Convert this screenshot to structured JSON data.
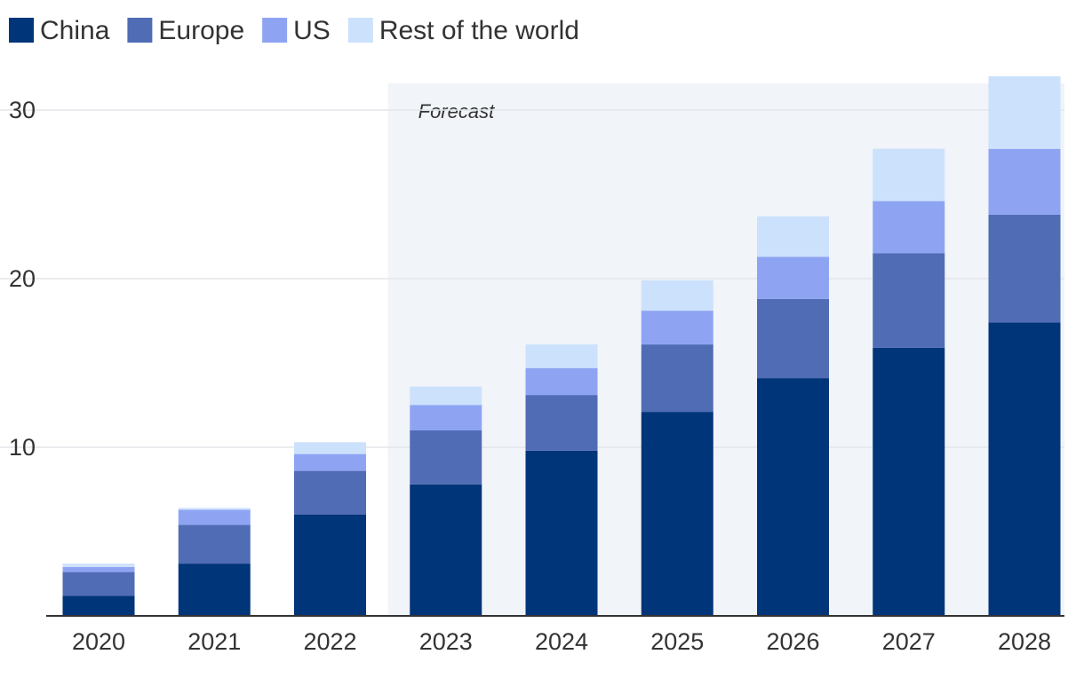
{
  "chart_data": {
    "type": "bar",
    "stacked": true,
    "categories": [
      "2020",
      "2021",
      "2022",
      "2023",
      "2024",
      "2025",
      "2026",
      "2027",
      "2028"
    ],
    "series": [
      {
        "name": "China",
        "color": "#003579",
        "values": [
          1.2,
          3.1,
          6.0,
          7.8,
          9.8,
          12.1,
          14.1,
          15.9,
          17.4
        ]
      },
      {
        "name": "Europe",
        "color": "#506cb5",
        "values": [
          1.4,
          2.3,
          2.6,
          3.2,
          3.3,
          4.0,
          4.7,
          5.6,
          6.4
        ]
      },
      {
        "name": "US",
        "color": "#8ea4f3",
        "values": [
          0.3,
          0.9,
          1.0,
          1.5,
          1.6,
          2.0,
          2.5,
          3.1,
          3.9
        ]
      },
      {
        "name": "Rest of the world",
        "color": "#cce1fc",
        "values": [
          0.2,
          0.1,
          0.7,
          1.1,
          1.4,
          1.8,
          2.4,
          3.1,
          4.3
        ]
      }
    ],
    "ylim": [
      0,
      32
    ],
    "yticks": [
      "10",
      "20",
      "30"
    ],
    "grid": true,
    "legend": "top-left",
    "forecast": {
      "label": "Forecast",
      "from_category": "2023",
      "band_color": "#f1f4f8"
    },
    "axis_color": "#333333",
    "grid_color": "#e3e6ea"
  }
}
